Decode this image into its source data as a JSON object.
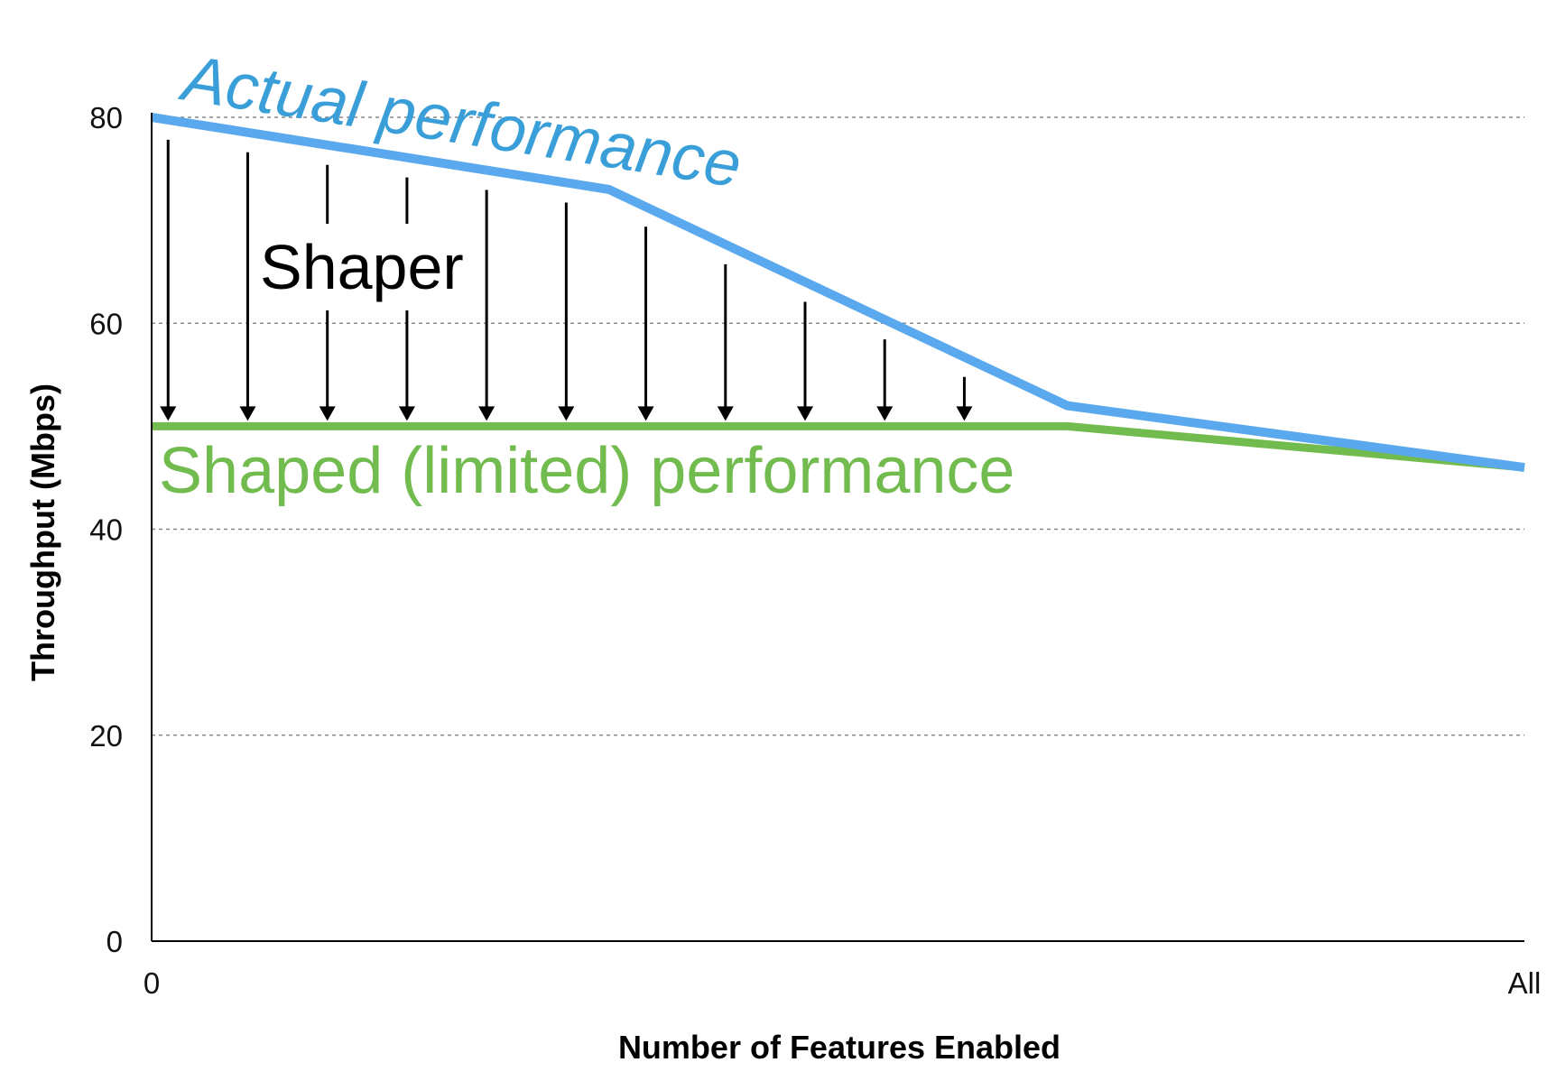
{
  "chart_data": {
    "type": "line",
    "title": "",
    "xlabel": "Number of Features Enabled",
    "ylabel": "Throughput (Mbps)",
    "x_tick_labels": [
      "0",
      "All"
    ],
    "y_ticks": [
      0,
      20,
      40,
      60,
      80
    ],
    "ylim": [
      0,
      80
    ],
    "xlim": [
      0,
      1
    ],
    "grid": "horizontal dashed",
    "series": [
      {
        "name": "Actual performance",
        "color": "#5aa9ee",
        "x": [
          0,
          0.333,
          0.667,
          1
        ],
        "values": [
          80,
          73,
          52,
          46
        ]
      },
      {
        "name": "Shaped (limited) performance",
        "color": "#72bb4e",
        "x": [
          0,
          0.667,
          1
        ],
        "values": [
          50,
          50,
          46
        ]
      }
    ],
    "annotations": {
      "shaper_label": "Shaper",
      "shaper_arrows_x": [
        0.012,
        0.07,
        0.128,
        0.186,
        0.244,
        0.302,
        0.36,
        0.418,
        0.476,
        0.534,
        0.592
      ],
      "actual_label_color": "#3a9fd8",
      "shaped_label_color": "#72bb4e",
      "arrow_color": "#000000"
    }
  }
}
